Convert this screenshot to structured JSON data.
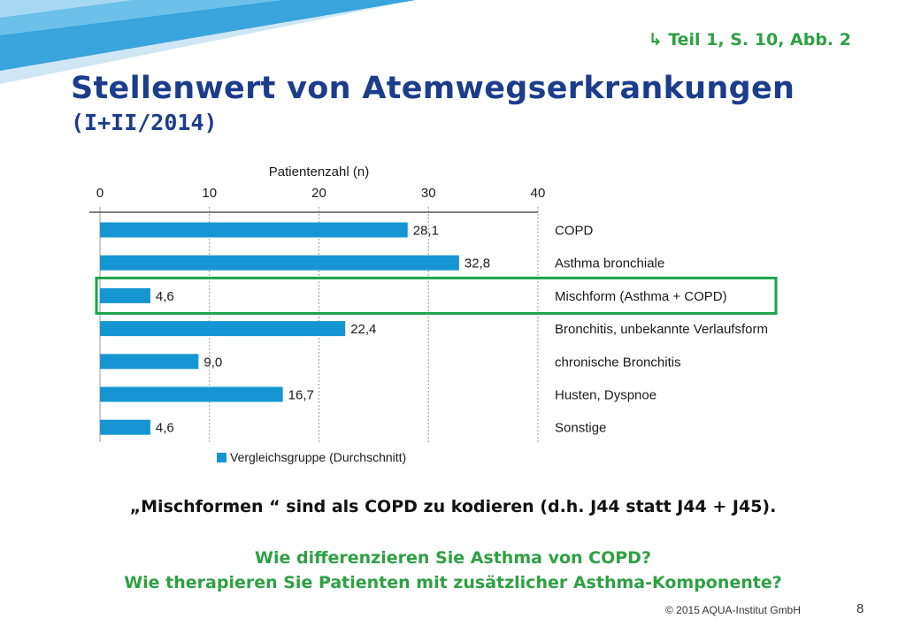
{
  "slide": {
    "reference": "↳ Teil  1, S. 10, Abb. 2",
    "title": "Stellenwert von Atemwegserkrankungen",
    "subtitle": "(I+II/2014)",
    "note": "„Mischformen “ sind als COPD zu kodieren (d.h. J44 statt J44 + J45).",
    "question_1": "Wie differenzieren Sie Asthma von COPD?",
    "question_2": "Wie therapieren Sie Patienten mit zusätzlicher Asthma-Komponente?",
    "copyright": "© 2015 AQUA-Institut GmbH",
    "page_number": "8"
  },
  "colors": {
    "bar": "#1596d3",
    "highlight_frame": "#19a34a",
    "title": "#1c3c8c",
    "accent_green": "#2ea043"
  },
  "chart_data": {
    "type": "bar",
    "orientation": "horizontal",
    "xlabel": "Patientenzahl (n)",
    "xlim": [
      0,
      40
    ],
    "xticks": [
      "0",
      "10",
      "20",
      "30",
      "40"
    ],
    "categories": [
      "COPD",
      "Asthma bronchiale",
      "Mischform (Asthma + COPD)",
      "Bronchitis, unbekannte Verlaufsform",
      "chronische Bronchitis",
      "Husten, Dyspnoe",
      "Sonstige"
    ],
    "series": [
      {
        "name": "Vergleichsgruppe (Durchschnitt)",
        "values": [
          28.1,
          32.8,
          4.6,
          22.4,
          9.0,
          16.7,
          4.6
        ],
        "labels": [
          "28,1",
          "32,8",
          "4,6",
          "22,4",
          "9,0",
          "16,7",
          "4,6"
        ]
      }
    ],
    "highlighted_category": "Mischform (Asthma + COPD)",
    "grid": true,
    "axis_position": "top",
    "legend_position": "bottom-left"
  }
}
